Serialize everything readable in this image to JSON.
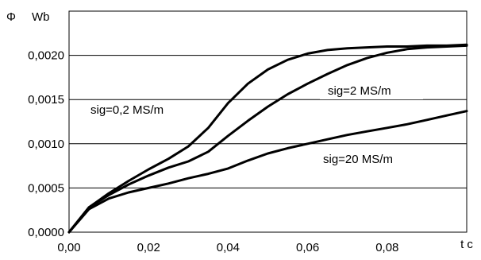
{
  "chart_data": {
    "type": "line",
    "title": "",
    "ylabel_symbol": "Φ",
    "ylabel_unit": "Wb",
    "xlabel": "t c",
    "xlim": [
      0,
      0.1
    ],
    "ylim": [
      0,
      0.0025
    ],
    "x_ticks": [
      "0,00",
      "0,02",
      "0,04",
      "0,06",
      "0,08"
    ],
    "y_ticks": [
      "0,0000",
      "0,0005",
      "0,0010",
      "0,0015",
      "0,0020"
    ],
    "grid": "horizontal",
    "line_color": "#000000",
    "series": [
      {
        "name": "sig=0,2 MS/m",
        "x": [
          0,
          0.005,
          0.01,
          0.015,
          0.02,
          0.025,
          0.03,
          0.035,
          0.04,
          0.045,
          0.05,
          0.055,
          0.06,
          0.065,
          0.07,
          0.075,
          0.08,
          0.085,
          0.09,
          0.095,
          0.1
        ],
        "y": [
          0,
          0.00028,
          0.00044,
          0.00058,
          0.00071,
          0.00083,
          0.00097,
          0.00118,
          0.00146,
          0.00168,
          0.00184,
          0.00195,
          0.00202,
          0.00206,
          0.00208,
          0.00209,
          0.0021,
          0.0021,
          0.00211,
          0.00211,
          0.00212
        ]
      },
      {
        "name": "sig=2 MS/m",
        "x": [
          0,
          0.005,
          0.01,
          0.015,
          0.02,
          0.025,
          0.03,
          0.035,
          0.04,
          0.045,
          0.05,
          0.055,
          0.06,
          0.065,
          0.07,
          0.075,
          0.08,
          0.085,
          0.09,
          0.095,
          0.1
        ],
        "y": [
          0,
          0.00028,
          0.00042,
          0.00054,
          0.00064,
          0.00073,
          0.0008,
          0.00091,
          0.00109,
          0.00126,
          0.00142,
          0.00156,
          0.00168,
          0.00179,
          0.00189,
          0.00197,
          0.00203,
          0.00207,
          0.00209,
          0.0021,
          0.00211
        ]
      },
      {
        "name": "sig=20 MS/m",
        "x": [
          0,
          0.005,
          0.01,
          0.015,
          0.02,
          0.025,
          0.03,
          0.035,
          0.04,
          0.045,
          0.05,
          0.055,
          0.06,
          0.065,
          0.07,
          0.075,
          0.08,
          0.085,
          0.09,
          0.095,
          0.1
        ],
        "y": [
          0,
          0.00026,
          0.00038,
          0.00045,
          0.0005,
          0.00055,
          0.00061,
          0.00066,
          0.00072,
          0.00081,
          0.00089,
          0.00095,
          0.001,
          0.00105,
          0.0011,
          0.00114,
          0.00118,
          0.00122,
          0.00127,
          0.00132,
          0.00137
        ]
      }
    ]
  }
}
